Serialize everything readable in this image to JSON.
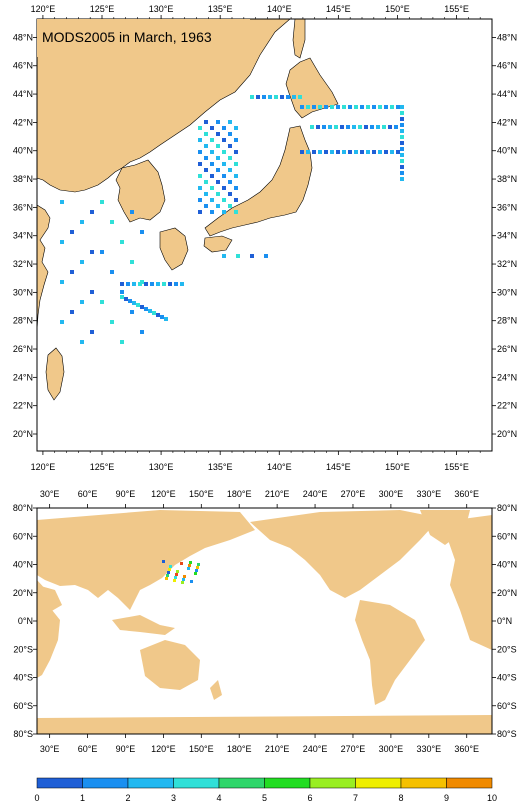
{
  "map1": {
    "title": "MODS2005 in March, 1963",
    "lon_labels": [
      "120°E",
      "125°E",
      "130°E",
      "135°E",
      "140°E",
      "145°E",
      "150°E",
      "155°E"
    ],
    "lat_labels": [
      "20°N",
      "22°N",
      "24°N",
      "26°N",
      "28°N",
      "30°N",
      "32°N",
      "34°N",
      "36°N",
      "38°N",
      "40°N",
      "42°N",
      "44°N",
      "46°N",
      "48°N"
    ]
  },
  "map2": {
    "lon_labels": [
      "30°E",
      "60°E",
      "90°E",
      "120°E",
      "150°E",
      "180°E",
      "210°E",
      "240°E",
      "270°E",
      "300°E",
      "330°E",
      "360°E"
    ],
    "lat_labels": [
      "80°S",
      "60°S",
      "40°S",
      "20°S",
      "0°N",
      "20°N",
      "40°N",
      "60°N",
      "80°N"
    ]
  },
  "colorbar": {
    "labels": [
      "0",
      "1",
      "2",
      "3",
      "4",
      "5",
      "6",
      "7",
      "8",
      "9",
      "10"
    ],
    "colors": [
      "#1f5fd6",
      "#1a8ff0",
      "#22b8f0",
      "#30e0d8",
      "#2fd66a",
      "#22dd22",
      "#99ee22",
      "#eeee00",
      "#f5c000",
      "#f08a00",
      "#e8481a"
    ]
  },
  "colors": {
    "land": "#f0c88a",
    "ocean": "#ffffff",
    "border": "#000000"
  }
}
